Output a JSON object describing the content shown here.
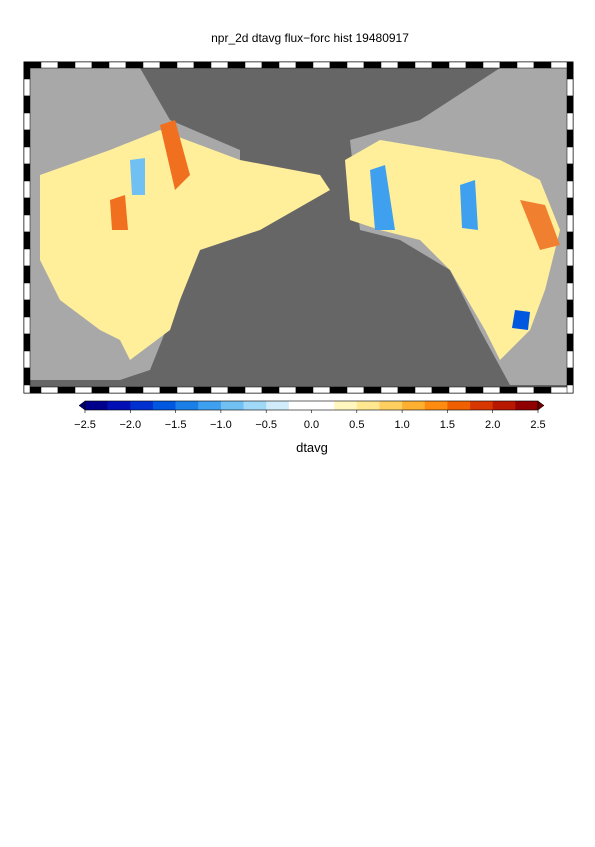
{
  "title": "npr_2d dtavg flux−forc hist 19480917",
  "colorbar": {
    "label": "dtavg",
    "clim": [
      -2.5,
      2.5
    ],
    "ticks": [
      {
        "value": -2.5,
        "label": "−2.5"
      },
      {
        "value": -2.0,
        "label": "−2.0"
      },
      {
        "value": -1.5,
        "label": "−1.5"
      },
      {
        "value": -1.0,
        "label": "−1.0"
      },
      {
        "value": -0.5,
        "label": "−0.5"
      },
      {
        "value": 0,
        "label": "0.0"
      },
      0.5,
      {
        "value": 1.0,
        "label": "1.0"
      },
      1.5,
      {
        "value": 2.0,
        "label": "2.0"
      },
      2.5
    ],
    "colors": [
      "#00008c",
      "#0010b4",
      "#0030d0",
      "#0058e0",
      "#1a80e8",
      "#40a0f0",
      "#70c0f4",
      "#a0d8f8",
      "#d0ecfa",
      "#ffffff",
      "#ffffff",
      "#fff6c0",
      "#ffe890",
      "#ffd060",
      "#ffb030",
      "#ff8c10",
      "#f06000",
      "#d83800",
      "#b81800",
      "#900000"
    ],
    "under": "#000070",
    "over": "#700000"
  }
}
